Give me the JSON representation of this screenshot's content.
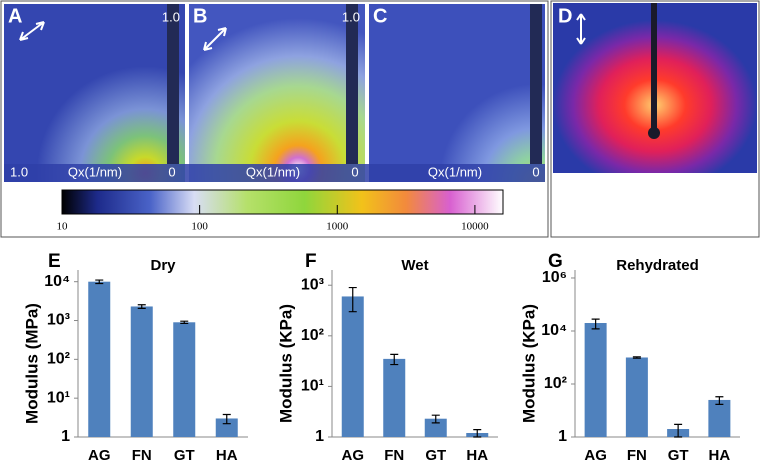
{
  "panels": [
    {
      "label": "A",
      "top": "1.0",
      "left": "1.0",
      "axis": "Qx(1/nm)",
      "right": "0"
    },
    {
      "label": "B",
      "top": "1.0",
      "axis": "Qx(1/nm)",
      "right": "0"
    },
    {
      "label": "C",
      "axis": "Qx(1/nm)",
      "right": "0"
    },
    {
      "label": "D"
    }
  ],
  "chart_data": [
    {
      "type": "colorbar",
      "xlim": [
        10,
        16000
      ],
      "log": true,
      "xticks": [
        10,
        100,
        1000,
        10000
      ]
    },
    {
      "type": "bar",
      "panel": "E",
      "title": "Dry",
      "y_label": "Modulus  (MPa)",
      "categories": [
        "AG",
        "FN",
        "GT",
        "HA"
      ],
      "values": [
        10000,
        2300,
        900,
        3
      ],
      "errors": [
        1000,
        250,
        60,
        0.8
      ],
      "color": "#4f81bd",
      "log": true,
      "ylim": [
        1,
        20000
      ],
      "yticks": [
        1,
        {
          "value": 10,
          "label": "10¹"
        },
        {
          "value": 100,
          "label": "10²"
        },
        {
          "value": 1000,
          "label": "10³"
        },
        {
          "value": 10000,
          "label": "10⁴"
        }
      ]
    },
    {
      "type": "bar",
      "panel": "F",
      "title": "Wet",
      "y_label": "Modulus  (KPa)",
      "categories": [
        "AG",
        "FN",
        "GT",
        "HA"
      ],
      "values": [
        600,
        35,
        2.3,
        1.2
      ],
      "errors": [
        300,
        8,
        0.4,
        0.2
      ],
      "color": "#4f81bd",
      "log": true,
      "ylim": [
        1,
        2000
      ],
      "yticks": [
        1,
        {
          "value": 10,
          "label": "10¹"
        },
        {
          "value": 100,
          "label": "10²"
        },
        {
          "value": 1000,
          "label": "10³"
        }
      ]
    },
    {
      "type": "bar",
      "panel": "G",
      "title": "Rehydrated",
      "y_label": "Modulus  (KPa)",
      "categories": [
        "AG",
        "FN",
        "GT",
        "HA"
      ],
      "values": [
        20000,
        1000,
        2,
        25
      ],
      "errors": [
        8000,
        60,
        1,
        8
      ],
      "color": "#4f81bd",
      "log": true,
      "ylim": [
        1,
        2000000
      ],
      "yticks": [
        1,
        {
          "value": 100,
          "label": "10²"
        },
        {
          "value": 10000,
          "label": "10⁴"
        },
        {
          "value": 1000000,
          "label": "10⁶"
        }
      ]
    }
  ]
}
